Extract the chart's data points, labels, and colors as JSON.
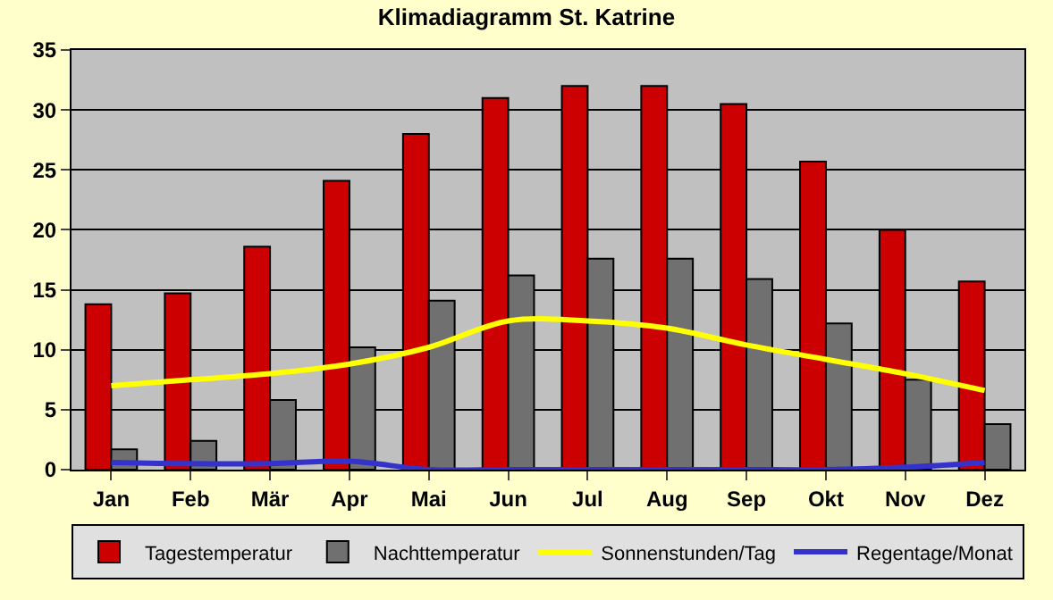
{
  "chart_data": {
    "type": "bar",
    "title": "Klimadiagramm St. Katrine",
    "categories": [
      "Jan",
      "Feb",
      "Mär",
      "Apr",
      "Mai",
      "Jun",
      "Jul",
      "Aug",
      "Sep",
      "Okt",
      "Nov",
      "Dez"
    ],
    "series": [
      {
        "name": "Tagestemperatur",
        "color": "#cc0000",
        "values": [
          13.8,
          14.7,
          18.6,
          24.1,
          28,
          31,
          32,
          32,
          30.5,
          25.7,
          20,
          15.7
        ]
      },
      {
        "name": "Nachttemperatur",
        "color": "#707070",
        "values": [
          1.7,
          2.4,
          5.8,
          10.2,
          14.1,
          16.2,
          17.6,
          17.6,
          15.9,
          12.2,
          7.5,
          3.8
        ]
      },
      {
        "name": "Sonnenstunden/Tag",
        "type": "line",
        "color": "#ffff00",
        "values": [
          7,
          7.5,
          8,
          8.8,
          10.2,
          12.4,
          12.4,
          11.8,
          10.4,
          9.2,
          8,
          6.6
        ]
      },
      {
        "name": "Regentage/Monat",
        "type": "line",
        "color": "#3333cc",
        "values": [
          0.6,
          0.5,
          0.5,
          0.7,
          0,
          0,
          0,
          0,
          0,
          0,
          0.2,
          0.6
        ]
      }
    ],
    "ylim": [
      0,
      35
    ],
    "yticks": [
      0,
      5,
      10,
      15,
      20,
      25,
      30,
      35
    ],
    "grid": "y",
    "legend": "bottom",
    "marker": "none"
  }
}
